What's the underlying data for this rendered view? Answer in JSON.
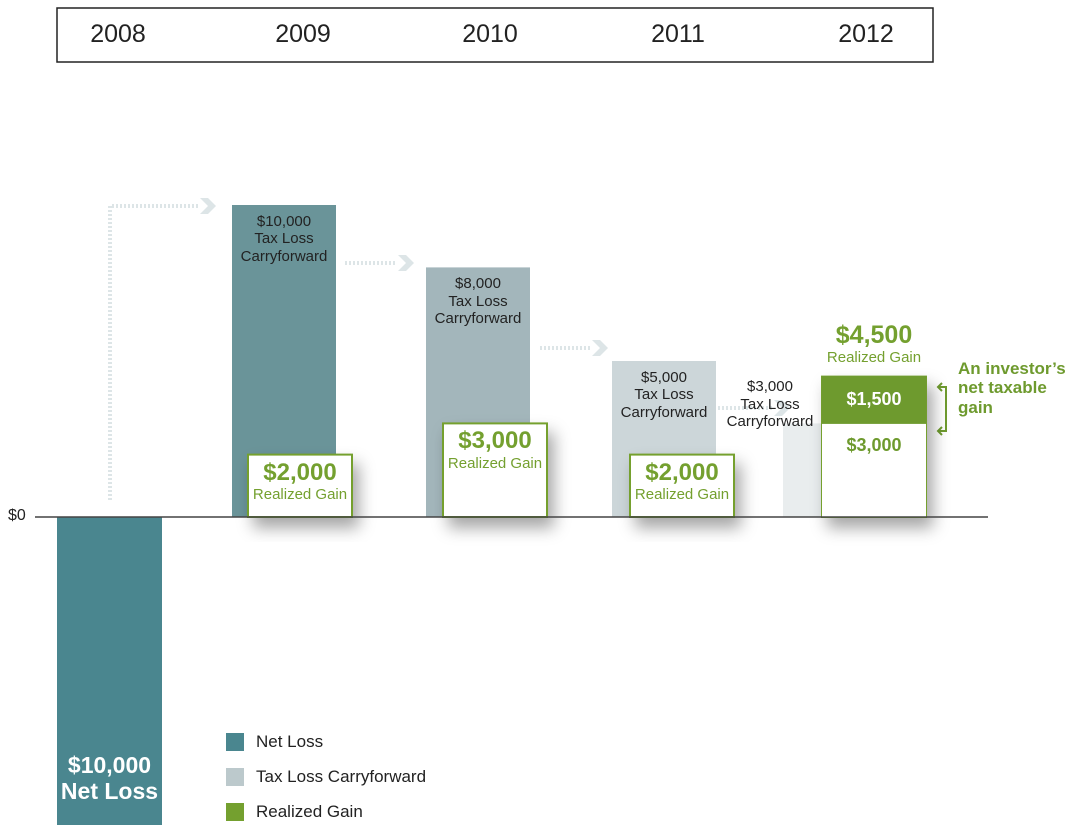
{
  "chart_data": {
    "type": "carryforward",
    "categories": [
      "2008",
      "2009",
      "2010",
      "2011",
      "2012"
    ],
    "ylim": [
      -10000,
      10000
    ],
    "yticks": [
      {
        "value": 0,
        "label": "$0"
      }
    ],
    "series": [
      {
        "name": "Net Loss",
        "color": "#4a868f",
        "values": [
          -10000,
          null,
          null,
          null,
          null
        ],
        "value_labels": [
          "$10,000",
          null,
          null,
          null,
          null
        ]
      },
      {
        "name": "Tax Loss Carryforward",
        "color": "#bcc9cc",
        "colors": [
          null,
          "#6a9499",
          "#a3b6bb",
          "#ccd6d9",
          "#e9edee"
        ],
        "values": [
          null,
          10000,
          8000,
          5000,
          3000
        ],
        "value_labels": [
          null,
          "$10,000",
          "$8,000",
          "$5,000",
          "$3,000"
        ]
      },
      {
        "name": "Realized Gain",
        "color": "#74a02f",
        "values": [
          null,
          2000,
          3000,
          2000,
          4500
        ],
        "value_labels": [
          null,
          "$2,000",
          "$3,000",
          "$2,000",
          "$4,500"
        ]
      }
    ],
    "gain_parts": [
      {
        "value": 3000,
        "label": "$3,000"
      },
      {
        "value": 1500,
        "label": "$1,500"
      }
    ],
    "annotation": "An investor’s net taxable gain"
  }
}
